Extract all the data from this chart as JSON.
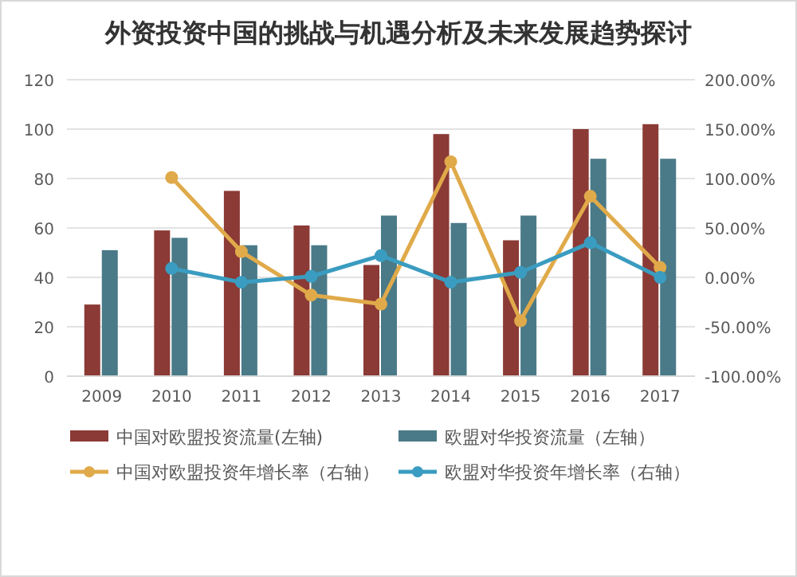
{
  "chart_data": {
    "type": "bar",
    "title": "外资投资中国的挑战与机遇分析及未来发展趋势探讨",
    "categories": [
      "2009",
      "2010",
      "2011",
      "2012",
      "2013",
      "2014",
      "2015",
      "2016",
      "2017"
    ],
    "series": [
      {
        "name": "中国对欧盟投资流量(左轴)",
        "color": "#8b3a36",
        "values": [
          29,
          59,
          75,
          61,
          45,
          98,
          55,
          100,
          102
        ]
      },
      {
        "name": "欧盟对华投资流量（左轴）",
        "color": "#4a7a87",
        "values": [
          51,
          56,
          53,
          53,
          65,
          62,
          65,
          88,
          88
        ]
      },
      {
        "name": "中国对欧盟投资年增长率（右轴）",
        "type": "line",
        "axis": "y2",
        "color": "#e0aa4a",
        "values": [
          null,
          101,
          26,
          -18,
          -27,
          117,
          -44,
          82,
          10
        ]
      },
      {
        "name": "欧盟对华投资年增长率（右轴）",
        "type": "line",
        "axis": "y2",
        "color": "#3a9cc0",
        "values": [
          null,
          9,
          -5,
          1,
          22,
          -5,
          5,
          35,
          0
        ]
      }
    ],
    "ylim": [
      0,
      120
    ],
    "yticks": [
      0,
      20,
      40,
      60,
      80,
      100,
      120
    ],
    "y2lim": [
      -100,
      200
    ],
    "y2ticks": [
      {
        "value": -100,
        "label": "-100.00%"
      },
      {
        "value": -50,
        "label": "-50.00%"
      },
      {
        "value": 0,
        "label": "0.00%"
      },
      {
        "value": 50,
        "label": "50.00%"
      },
      {
        "value": 100,
        "label": "100.00%"
      },
      {
        "value": 150,
        "label": "150.00%"
      },
      {
        "value": 200,
        "label": "200.00%"
      }
    ],
    "grid": "y",
    "legend": "bottom",
    "marker": "circle"
  }
}
